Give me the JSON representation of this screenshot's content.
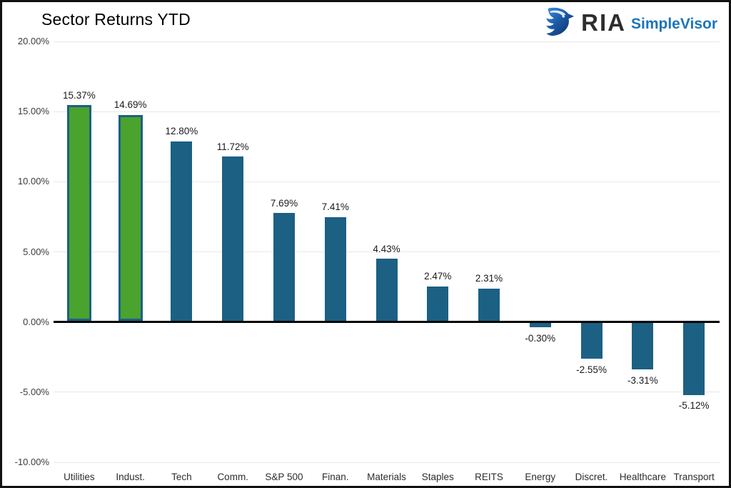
{
  "logo": {
    "ria": "RIA",
    "simplevisor": "SimpleVisor"
  },
  "chart_data": {
    "type": "bar",
    "title": "Sector Returns YTD",
    "categories": [
      "Utilities",
      "Indust.",
      "Tech",
      "Comm.",
      "S&P 500",
      "Finan.",
      "Materials",
      "Staples",
      "REITS",
      "Energy",
      "Discret.",
      "Healthcare",
      "Transport"
    ],
    "values": [
      15.37,
      14.69,
      12.8,
      11.72,
      7.69,
      7.41,
      4.43,
      2.47,
      2.31,
      -0.3,
      -2.55,
      -3.31,
      -5.12
    ],
    "value_labels": [
      "15.37%",
      "14.69%",
      "12.80%",
      "11.72%",
      "7.69%",
      "7.41%",
      "4.43%",
      "2.47%",
      "2.31%",
      "-0.30%",
      "-2.55%",
      "-3.31%",
      "-5.12%"
    ],
    "xlabel": "",
    "ylabel": "",
    "ylim": [
      -10,
      20
    ],
    "ytick_step": 5,
    "ytick_labels": [
      "20.00%",
      "15.00%",
      "10.00%",
      "5.00%",
      "0.00%",
      "-5.00%",
      "-10.00%"
    ],
    "grid": true,
    "legend": "none",
    "bar_fill": "#1C6084",
    "highlight_fill": "#4AA32D",
    "highlight_border": "#1C6084",
    "highlighted_indices": [
      0,
      1
    ]
  },
  "colors": {
    "ria_dark": "#2D2D2D",
    "simplevisor_blue": "#1B75BB",
    "gridline": "#E8E8E8",
    "zero_line": "#000000"
  }
}
